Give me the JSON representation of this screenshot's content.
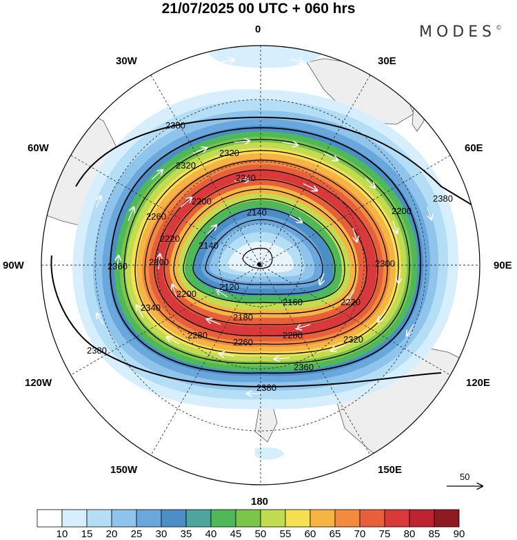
{
  "title": "21/07/2025  00 UTC  + 060 hrs",
  "brand": "MODES",
  "brand_mark": "©",
  "longitude_labels": {
    "n": "0",
    "s": "180",
    "e": "90E",
    "w": "90W",
    "ne1": "30E",
    "ne2": "60E",
    "nw1": "30W",
    "nw2": "60W",
    "se1": "120E",
    "se2": "150E",
    "sw1": "120W",
    "sw2": "150W"
  },
  "contour_labels": [
    "2380",
    "2320",
    "2320",
    "2240",
    "2200",
    "2140",
    "2260",
    "2300",
    "2380",
    "2220",
    "2200",
    "2140",
    "2120",
    "2160",
    "2180",
    "2220",
    "2360",
    "2300",
    "2200",
    "2340",
    "2280",
    "2260",
    "2280",
    "2320",
    "2380",
    "2360",
    "2380"
  ],
  "colorbar": {
    "ticks": [
      "10",
      "15",
      "20",
      "25",
      "30",
      "35",
      "40",
      "45",
      "50",
      "55",
      "60",
      "65",
      "70",
      "75",
      "80",
      "85",
      "90"
    ],
    "colors": [
      "#ffffff",
      "#d7effc",
      "#b4def6",
      "#8fc5ec",
      "#6aa7dd",
      "#4b8fc6",
      "#4da59c",
      "#4fb858",
      "#7bc54a",
      "#c2dc52",
      "#f5df52",
      "#f6b445",
      "#f28b3d",
      "#e8603b",
      "#d9393a",
      "#bb2430",
      "#8f1b22"
    ]
  },
  "wind_reference": {
    "value": "50"
  },
  "colors": {
    "land": "#eeeeee",
    "graticule": "#333333",
    "contour": "#000000"
  }
}
